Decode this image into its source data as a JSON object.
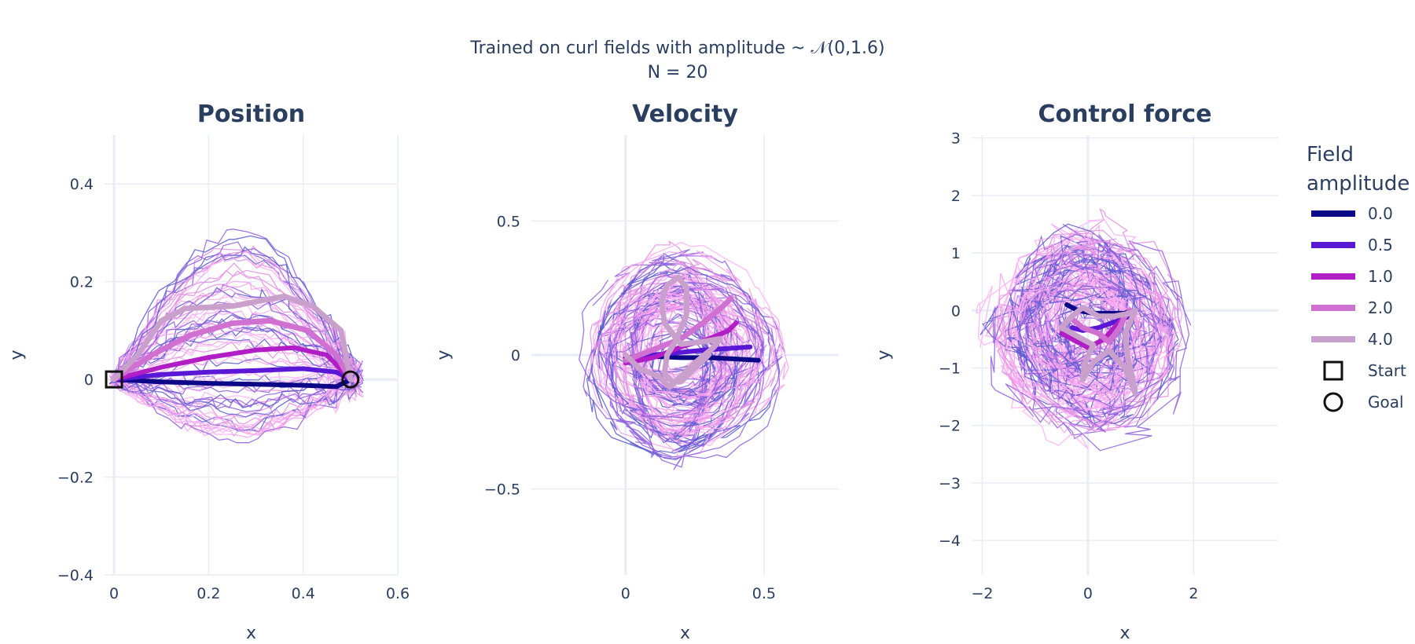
{
  "figure": {
    "title_line1": "Trained on curl fields with amplitude ~ 𝒩(0,1.6)",
    "title_line2": "N = 20"
  },
  "legend": {
    "title_line1": "Field",
    "title_line2": "amplitude",
    "entries": [
      {
        "label": "0.0",
        "color": "#0d0887"
      },
      {
        "label": "0.5",
        "color": "#5b17d6"
      },
      {
        "label": "1.0",
        "color": "#b11ec6"
      },
      {
        "label": "2.0",
        "color": "#d070d0"
      },
      {
        "label": "4.0",
        "color": "#c9a0cc"
      },
      {
        "label": "Start",
        "marker": "square"
      },
      {
        "label": "Goal",
        "marker": "circle"
      }
    ]
  },
  "chart_data": [
    {
      "type": "line",
      "title": "Position",
      "xlabel": "x",
      "ylabel": "y",
      "xlim": [
        -0.02,
        0.6
      ],
      "ylim": [
        -0.4,
        0.5
      ],
      "xticks": [
        {
          "v": 0,
          "t": "0"
        },
        {
          "v": 0.2,
          "t": "0.2"
        },
        {
          "v": 0.4,
          "t": "0.4"
        },
        {
          "v": 0.6,
          "t": "0.6"
        }
      ],
      "yticks": [
        {
          "v": -0.4,
          "t": "−0.4"
        },
        {
          "v": -0.2,
          "t": "−0.2"
        },
        {
          "v": 0,
          "t": "0"
        },
        {
          "v": 0.2,
          "t": "0.2"
        },
        {
          "v": 0.4,
          "t": "0.4"
        }
      ],
      "series": [
        {
          "name": "0.0",
          "points": [
            [
              0,
              0
            ],
            [
              0.1,
              -0.005
            ],
            [
              0.2,
              -0.008
            ],
            [
              0.3,
              -0.01
            ],
            [
              0.4,
              -0.012
            ],
            [
              0.47,
              -0.015
            ],
            [
              0.5,
              0
            ]
          ]
        },
        {
          "name": "0.5",
          "points": [
            [
              0,
              0
            ],
            [
              0.1,
              0.01
            ],
            [
              0.2,
              0.015
            ],
            [
              0.3,
              0.018
            ],
            [
              0.4,
              0.022
            ],
            [
              0.47,
              0.015
            ],
            [
              0.5,
              0
            ]
          ]
        },
        {
          "name": "1.0",
          "points": [
            [
              0,
              0
            ],
            [
              0.1,
              0.025
            ],
            [
              0.2,
              0.045
            ],
            [
              0.3,
              0.06
            ],
            [
              0.38,
              0.065
            ],
            [
              0.45,
              0.05
            ],
            [
              0.5,
              0
            ]
          ]
        },
        {
          "name": "2.0",
          "points": [
            [
              0,
              0
            ],
            [
              0.08,
              0.05
            ],
            [
              0.16,
              0.09
            ],
            [
              0.25,
              0.115
            ],
            [
              0.33,
              0.12
            ],
            [
              0.41,
              0.1
            ],
            [
              0.47,
              0.05
            ],
            [
              0.5,
              0
            ]
          ]
        },
        {
          "name": "4.0",
          "points": [
            [
              0,
              0
            ],
            [
              0.05,
              0.05
            ],
            [
              0.1,
              0.12
            ],
            [
              0.15,
              0.145
            ],
            [
              0.25,
              0.15
            ],
            [
              0.36,
              0.17
            ],
            [
              0.42,
              0.15
            ],
            [
              0.48,
              0.1
            ],
            [
              0.5,
              0
            ]
          ]
        }
      ],
      "markers": {
        "start": [
          0,
          0
        ],
        "goal": [
          0.5,
          0
        ]
      }
    },
    {
      "type": "line",
      "title": "Velocity",
      "xlabel": "x",
      "ylabel": "y",
      "xlim": [
        -0.34,
        0.77
      ],
      "ylim": [
        -0.82,
        0.82
      ],
      "xticks": [
        {
          "v": 0,
          "t": "0"
        },
        {
          "v": 0.5,
          "t": "0.5"
        }
      ],
      "yticks": [
        {
          "v": -0.5,
          "t": "−0.5"
        },
        {
          "v": 0,
          "t": "0"
        },
        {
          "v": 0.5,
          "t": "0.5"
        }
      ],
      "series": [
        {
          "name": "0.0",
          "points": [
            [
              0,
              -0.01
            ],
            [
              0.1,
              -0.005
            ],
            [
              0.2,
              -0.01
            ],
            [
              0.3,
              -0.01
            ],
            [
              0.4,
              -0.015
            ],
            [
              0.48,
              -0.02
            ]
          ]
        },
        {
          "name": "0.5",
          "points": [
            [
              0,
              -0.02
            ],
            [
              0.1,
              0
            ],
            [
              0.2,
              0.01
            ],
            [
              0.3,
              0.02
            ],
            [
              0.38,
              0.025
            ],
            [
              0.45,
              0.03
            ]
          ]
        },
        {
          "name": "1.0",
          "points": [
            [
              0,
              -0.03
            ],
            [
              0.1,
              -0.01
            ],
            [
              0.2,
              0.03
            ],
            [
              0.3,
              0.06
            ],
            [
              0.37,
              0.09
            ],
            [
              0.4,
              0.12
            ]
          ]
        },
        {
          "name": "2.0",
          "points": [
            [
              0,
              -0.02
            ],
            [
              0.1,
              0.02
            ],
            [
              0.2,
              0.06
            ],
            [
              0.28,
              0.12
            ],
            [
              0.35,
              0.18
            ],
            [
              0.38,
              0.21
            ]
          ]
        },
        {
          "name": "4.0",
          "points": [
            [
              0,
              0
            ],
            [
              0.05,
              -0.05
            ],
            [
              0.12,
              -0.08
            ],
            [
              0.16,
              -0.12
            ],
            [
              0.2,
              -0.08
            ],
            [
              0.25,
              -0.03
            ],
            [
              0.32,
              0.03
            ],
            [
              0.34,
              0.06
            ],
            [
              0.28,
              0.05
            ],
            [
              0.2,
              0.04
            ],
            [
              0.14,
              0.12
            ],
            [
              0.13,
              0.2
            ],
            [
              0.15,
              0.26
            ],
            [
              0.19,
              0.29
            ],
            [
              0.22,
              0.25
            ],
            [
              0.22,
              0.15
            ],
            [
              0.18,
              0.05
            ],
            [
              0.15,
              0
            ],
            [
              0.14,
              -0.07
            ],
            [
              0.17,
              -0.1
            ],
            [
              0.2,
              -0.1
            ],
            [
              0.25,
              -0.05
            ],
            [
              0.3,
              0
            ]
          ]
        }
      ]
    },
    {
      "type": "line",
      "title": "Control force",
      "xlabel": "x",
      "ylabel": "y",
      "xlim": [
        -2.2,
        3.6
      ],
      "ylim": [
        -4.6,
        3.05
      ],
      "xticks": [
        {
          "v": -2,
          "t": "−2"
        },
        {
          "v": 0,
          "t": "0"
        },
        {
          "v": 2,
          "t": "2"
        }
      ],
      "yticks": [
        {
          "v": -4,
          "t": "−4"
        },
        {
          "v": -3,
          "t": "−3"
        },
        {
          "v": -2,
          "t": "−2"
        },
        {
          "v": -1,
          "t": "−1"
        },
        {
          "v": 0,
          "t": "0"
        },
        {
          "v": 1,
          "t": "1"
        },
        {
          "v": 2,
          "t": "2"
        },
        {
          "v": 3,
          "t": "3"
        }
      ],
      "series": [
        {
          "name": "0.0",
          "points": [
            [
              -0.4,
              0.1
            ],
            [
              -0.2,
              0
            ],
            [
              0.1,
              -0.05
            ],
            [
              0.4,
              -0.05
            ],
            [
              0.7,
              -0.05
            ],
            [
              0.8,
              0
            ]
          ]
        },
        {
          "name": "0.5",
          "points": [
            [
              -0.3,
              -0.3
            ],
            [
              -0.1,
              -0.35
            ],
            [
              0.2,
              -0.3
            ],
            [
              0.5,
              -0.2
            ],
            [
              0.8,
              -0.1
            ],
            [
              0.9,
              0
            ]
          ]
        },
        {
          "name": "1.0",
          "points": [
            [
              -0.5,
              -0.4
            ],
            [
              -0.3,
              -0.5
            ],
            [
              0,
              -0.65
            ],
            [
              0.3,
              -0.5
            ],
            [
              0.6,
              -0.2
            ],
            [
              0.8,
              0
            ]
          ]
        },
        {
          "name": "2.0",
          "points": [
            [
              -0.3,
              -0.15
            ],
            [
              -0.1,
              -0.3
            ],
            [
              0.2,
              -0.4
            ],
            [
              0.4,
              -0.55
            ],
            [
              0.6,
              -0.3
            ],
            [
              0.7,
              -0.1
            ],
            [
              0.8,
              0
            ]
          ]
        },
        {
          "name": "4.0",
          "points": [
            [
              -0.3,
              -0.1
            ],
            [
              -0.1,
              0.05
            ],
            [
              0.2,
              -0.1
            ],
            [
              0.5,
              -0.1
            ],
            [
              0.8,
              -0.05
            ],
            [
              0.9,
              0
            ],
            [
              0.7,
              -0.4
            ],
            [
              0.75,
              -0.8
            ],
            [
              0.85,
              -1.2
            ],
            [
              0.9,
              -1.45
            ],
            [
              0.7,
              -1.0
            ],
            [
              0.4,
              -0.7
            ],
            [
              0.1,
              -0.9
            ],
            [
              -0.1,
              -1.2
            ],
            [
              -0.05,
              -0.9
            ],
            [
              0.1,
              -0.6
            ],
            [
              -0.2,
              -0.45
            ],
            [
              -0.5,
              -0.3
            ],
            [
              -0.3,
              -0.1
            ]
          ]
        }
      ]
    }
  ]
}
